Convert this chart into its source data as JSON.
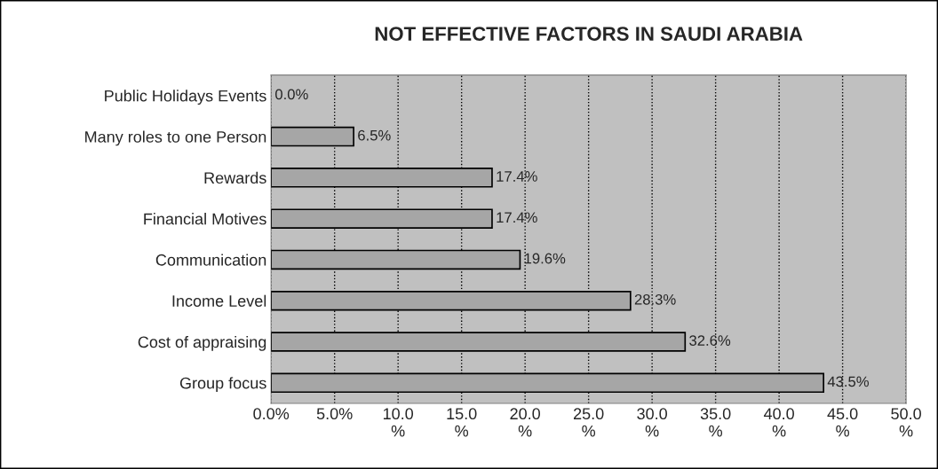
{
  "chart_data": {
    "type": "bar",
    "orientation": "horizontal",
    "title": "NOT EFFECTIVE FACTORS IN SAUDI ARABIA",
    "categories": [
      "Public Holidays Events",
      "Many roles to one Person",
      "Rewards",
      "Financial Motives",
      "Communication",
      "Income Level",
      "Cost of appraising",
      "Group focus"
    ],
    "values": [
      0.0,
      6.5,
      17.4,
      17.4,
      19.6,
      28.3,
      32.6,
      43.5
    ],
    "value_labels": [
      "0.0%",
      "6.5%",
      "17.4%",
      "17.4%",
      "19.6%",
      "28.3%",
      "32.6%",
      "43.5%"
    ],
    "color": "#a6a6a6",
    "xlim": [
      0,
      50
    ],
    "xticks": [
      {
        "value": 0,
        "label": "0.0%"
      },
      {
        "value": 5,
        "label": "5.0%"
      },
      {
        "value": 10,
        "label": "10.0\n%"
      },
      {
        "value": 15,
        "label": "15.0\n%"
      },
      {
        "value": 20,
        "label": "20.0\n%"
      },
      {
        "value": 25,
        "label": "25.0\n%"
      },
      {
        "value": 30,
        "label": "30.0\n%"
      },
      {
        "value": 35,
        "label": "35.0\n%"
      },
      {
        "value": 40,
        "label": "40.0\n%"
      },
      {
        "value": 45,
        "label": "45.0\n%"
      },
      {
        "value": 50,
        "label": "50.0\n%"
      }
    ],
    "grid": "x",
    "legend": false
  }
}
